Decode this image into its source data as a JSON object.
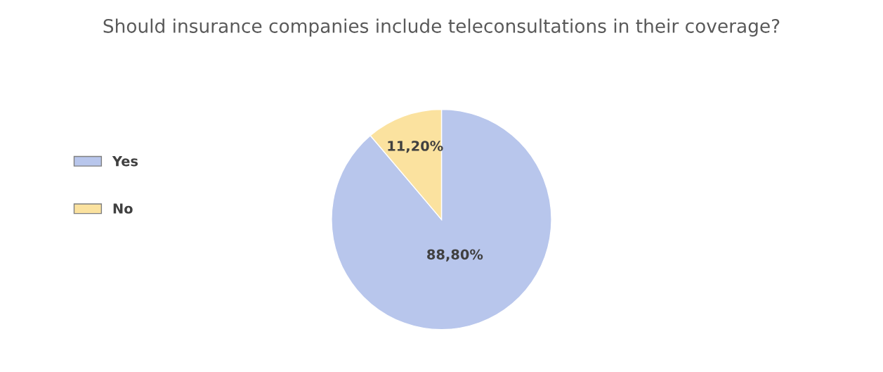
{
  "chart_data": {
    "type": "pie",
    "title": "Should insurance companies include teleconsultations in their coverage?",
    "categories": [
      "Yes",
      "No"
    ],
    "values": [
      88.8,
      11.2
    ],
    "colors": [
      "#b8c6ec",
      "#fbe29f"
    ],
    "value_labels": [
      "88,80%",
      "11,20%"
    ],
    "legend": "left"
  }
}
